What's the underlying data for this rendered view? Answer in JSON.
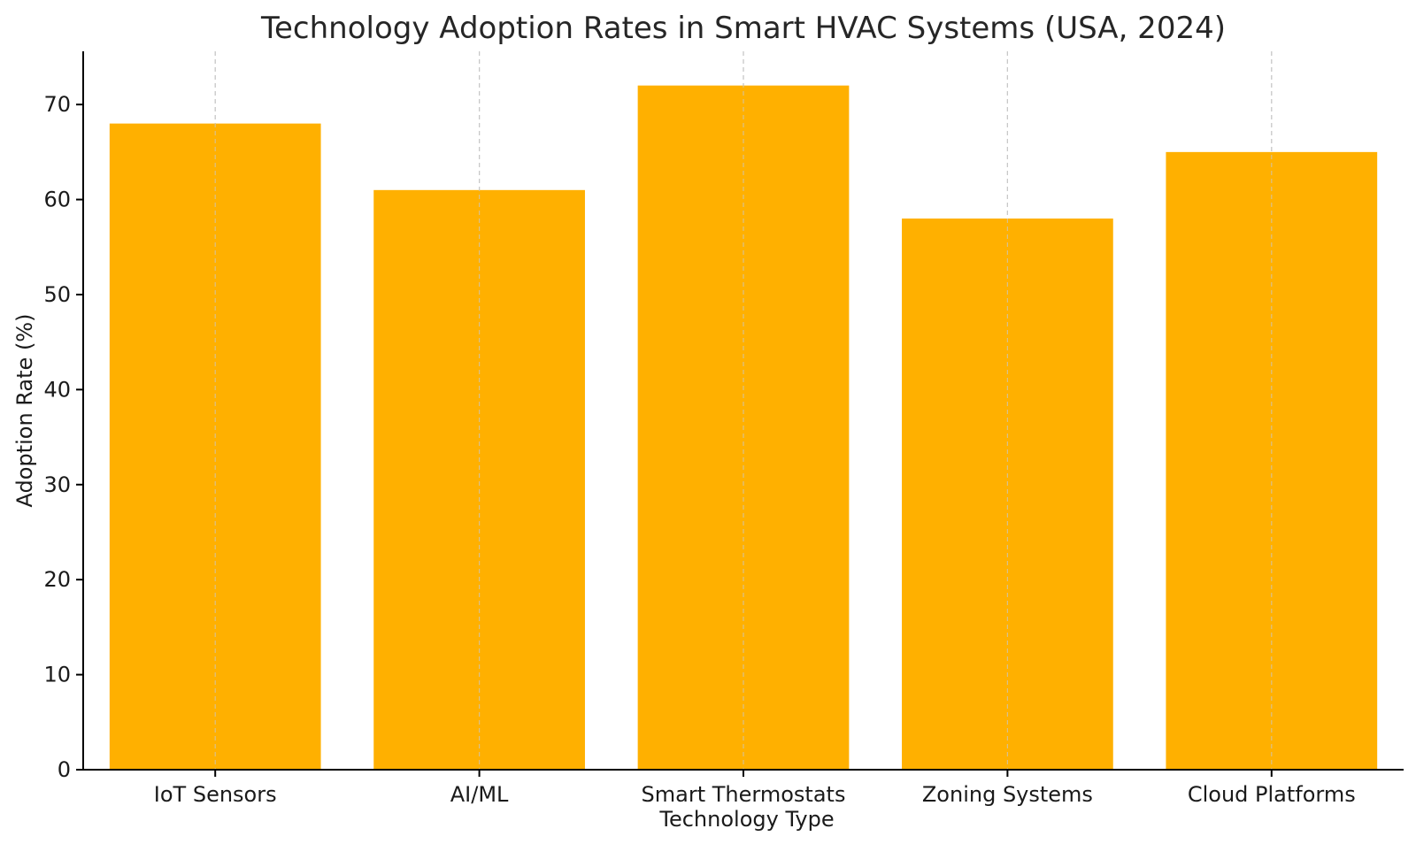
{
  "chart_data": {
    "type": "bar",
    "title": "Technology Adoption Rates in Smart HVAC Systems (USA, 2024)",
    "xlabel": "Technology Type",
    "ylabel": "Adoption Rate (%)",
    "categories": [
      "IoT Sensors",
      "AI/ML",
      "Smart Thermostats",
      "Zoning Systems",
      "Cloud Platforms"
    ],
    "values": [
      68,
      61,
      72,
      58,
      65
    ],
    "ylim": [
      0,
      75.6
    ],
    "yticks": [
      0,
      10,
      20,
      30,
      40,
      50,
      60,
      70
    ],
    "grid": "vertical",
    "bar_color": "#FFB000",
    "legend": "none"
  }
}
